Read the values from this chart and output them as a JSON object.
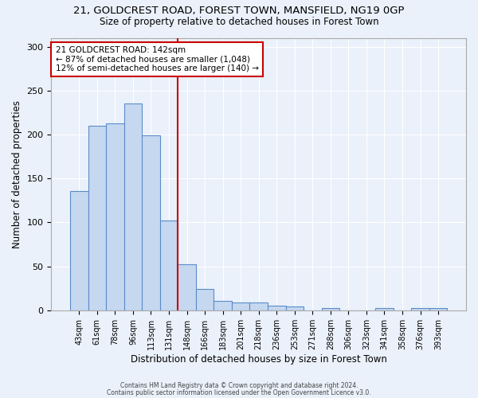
{
  "title_line1": "21, GOLDCREST ROAD, FOREST TOWN, MANSFIELD, NG19 0GP",
  "title_line2": "Size of property relative to detached houses in Forest Town",
  "xlabel": "Distribution of detached houses by size in Forest Town",
  "ylabel": "Number of detached properties",
  "bar_labels": [
    "43sqm",
    "61sqm",
    "78sqm",
    "96sqm",
    "113sqm",
    "131sqm",
    "148sqm",
    "166sqm",
    "183sqm",
    "201sqm",
    "218sqm",
    "236sqm",
    "253sqm",
    "271sqm",
    "288sqm",
    "306sqm",
    "323sqm",
    "341sqm",
    "358sqm",
    "376sqm",
    "393sqm"
  ],
  "bar_values": [
    136,
    210,
    213,
    235,
    199,
    102,
    52,
    24,
    11,
    9,
    9,
    5,
    4,
    0,
    3,
    0,
    0,
    3,
    0,
    3,
    3
  ],
  "bar_color": "#c5d8f0",
  "bar_edge_color": "#5b8cc8",
  "background_color": "#eaf1fb",
  "grid_color": "#ffffff",
  "annotation_text": "21 GOLDCREST ROAD: 142sqm\n← 87% of detached houses are smaller (1,048)\n12% of semi-detached houses are larger (140) →",
  "annotation_box_color": "#ffffff",
  "annotation_box_edge_color": "#cc0000",
  "ref_line_color": "#cc0000",
  "ref_line_x": 5.5,
  "ylim": [
    0,
    310
  ],
  "yticks": [
    0,
    50,
    100,
    150,
    200,
    250,
    300
  ],
  "footer_line1": "Contains HM Land Registry data © Crown copyright and database right 2024.",
  "footer_line2": "Contains public sector information licensed under the Open Government Licence v3.0."
}
